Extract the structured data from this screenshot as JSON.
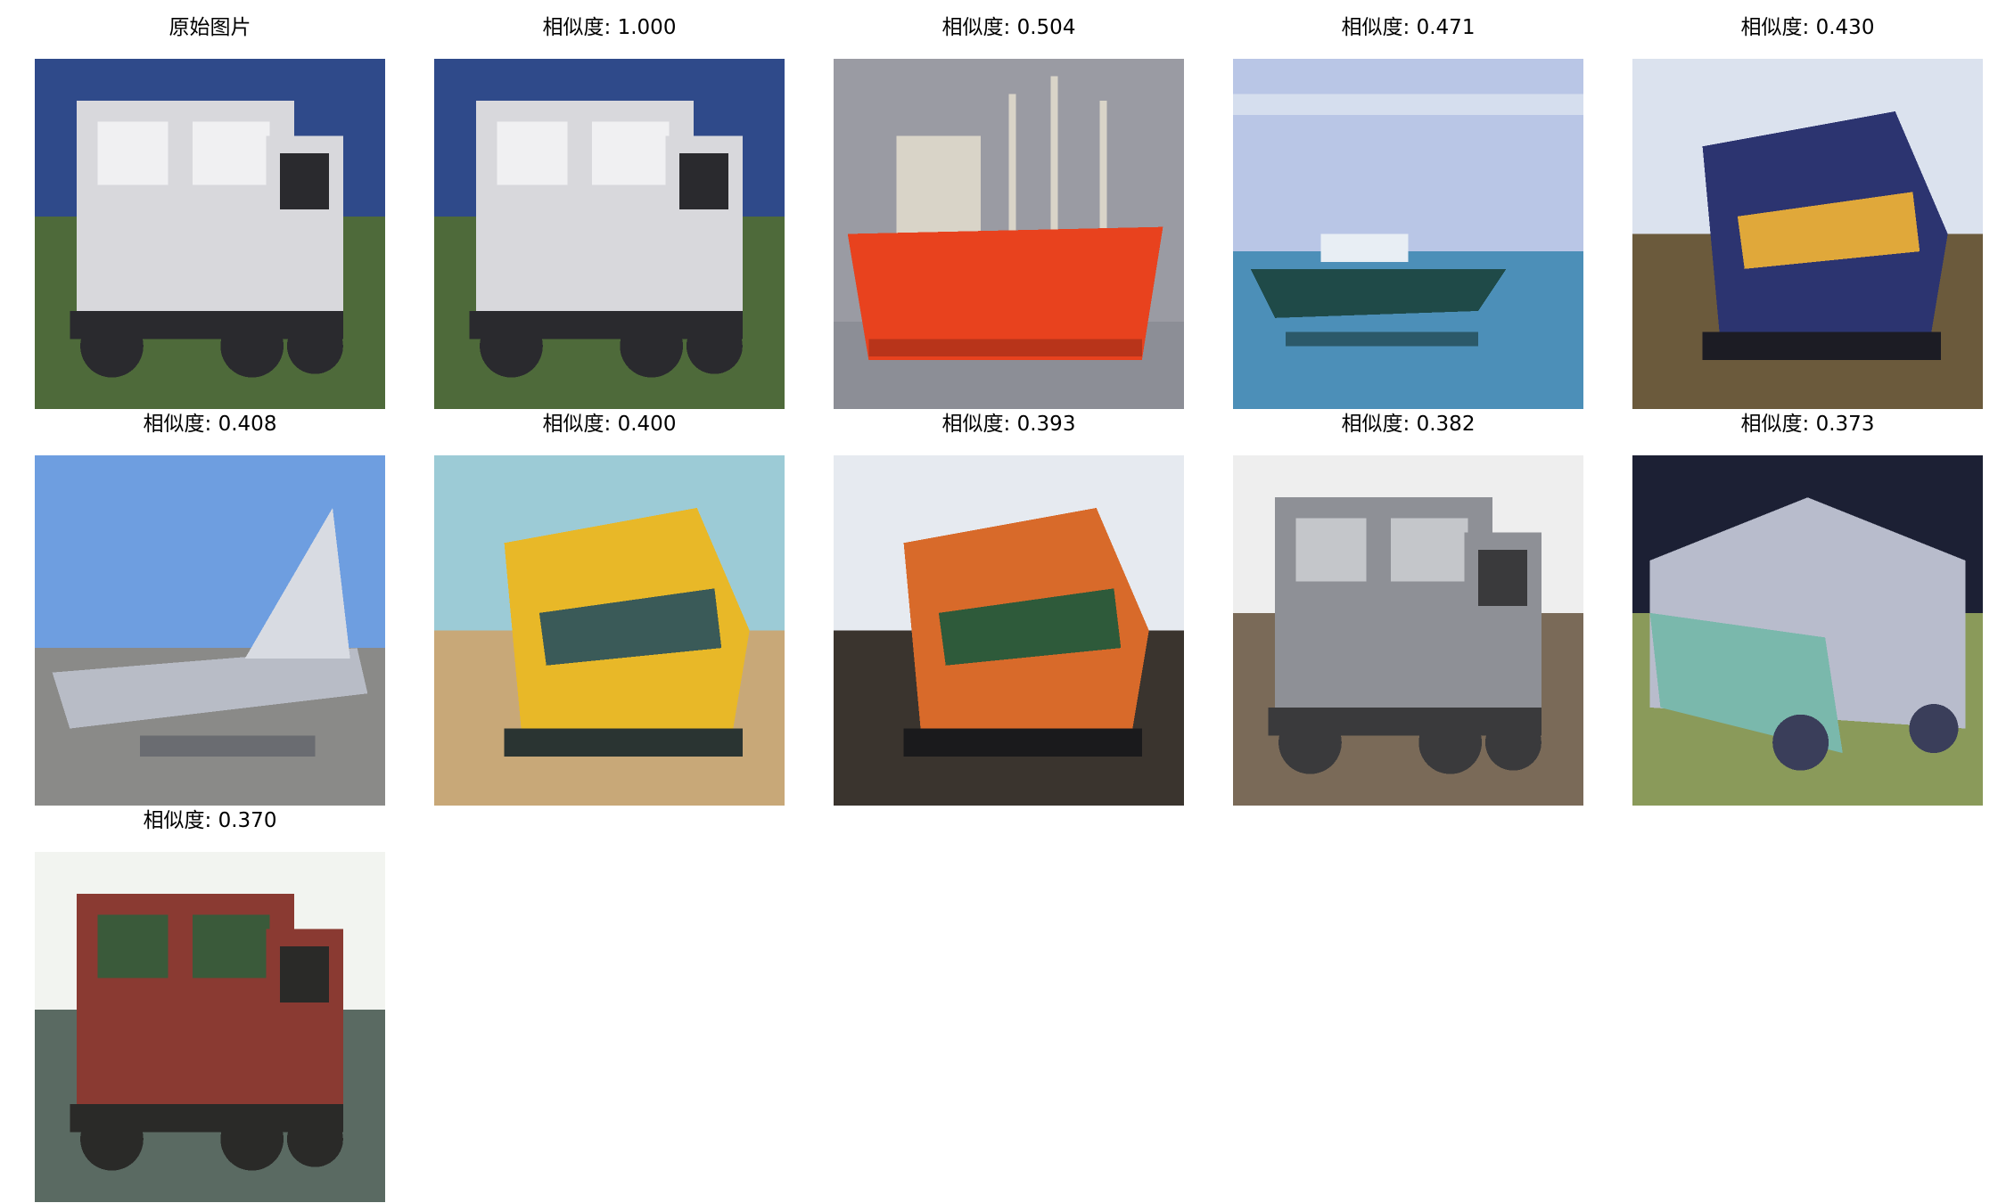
{
  "figure": {
    "panels": [
      {
        "title": "原始图片",
        "subject": "white truck",
        "thumbnail_icon": "truck-image",
        "palette": {
          "sky": "#2f4a8a",
          "ground": "#4e6a3a",
          "main": "#d8d8dc",
          "accent": "#f0f0f2",
          "dark": "#2a2a2e"
        }
      },
      {
        "title": "相似度: 1.000",
        "subject": "white truck",
        "thumbnail_icon": "truck-image",
        "palette": {
          "sky": "#2f4a8a",
          "ground": "#4e6a3a",
          "main": "#d8d8dc",
          "accent": "#f0f0f2",
          "dark": "#2a2a2e"
        }
      },
      {
        "title": "相似度: 0.504",
        "subject": "red ship",
        "thumbnail_icon": "ship-image",
        "palette": {
          "sky": "#9a9ba3",
          "ground": "#8c8e96",
          "main": "#e8421e",
          "accent": "#d9d4c8",
          "dark": "#b8341a"
        }
      },
      {
        "title": "相似度: 0.471",
        "subject": "boat on water",
        "thumbnail_icon": "boat-image",
        "palette": {
          "sky": "#b9c6e6",
          "ground": "#4c8fb8",
          "main": "#1f4a48",
          "accent": "#e8eef4",
          "dark": "#163634"
        }
      },
      {
        "title": "相似度: 0.430",
        "subject": "locomotive",
        "thumbnail_icon": "train-image",
        "palette": {
          "sky": "#dbe2ee",
          "ground": "#6b5a3c",
          "main": "#2c3470",
          "accent": "#e0a83a",
          "dark": "#1c1c24"
        }
      },
      {
        "title": "相似度: 0.408",
        "subject": "jet airplane",
        "thumbnail_icon": "airplane-image",
        "palette": {
          "sky": "#6e9ee0",
          "ground": "#8a8a88",
          "main": "#b8bcc6",
          "accent": "#d8dbe2",
          "dark": "#5c6068"
        }
      },
      {
        "title": "相似度: 0.400",
        "subject": "yellow train",
        "thumbnail_icon": "train-image",
        "palette": {
          "sky": "#9ccbd6",
          "ground": "#c8a878",
          "main": "#e8b828",
          "accent": "#3a5a58",
          "dark": "#2a3432"
        }
      },
      {
        "title": "相似度: 0.393",
        "subject": "orange locomotive",
        "thumbnail_icon": "train-image",
        "palette": {
          "sky": "#e6eaf0",
          "ground": "#3a342e",
          "main": "#d86a2a",
          "accent": "#2e5a3a",
          "dark": "#1a1a1c"
        }
      },
      {
        "title": "相似度: 0.382",
        "subject": "grey truck",
        "thumbnail_icon": "truck-image",
        "palette": {
          "sky": "#eeeeee",
          "ground": "#7a6a58",
          "main": "#8e9096",
          "accent": "#c4c6ca",
          "dark": "#3a3a3c"
        }
      },
      {
        "title": "相似度: 0.373",
        "subject": "teal car",
        "thumbnail_icon": "car-image",
        "palette": {
          "sky": "#1c2034",
          "ground": "#8a9a5a",
          "main": "#7ab8ac",
          "accent": "#b8bccc",
          "dark": "#3a3e5a"
        }
      },
      {
        "title": "相似度: 0.370",
        "subject": "dump truck",
        "thumbnail_icon": "truck-image",
        "palette": {
          "sky": "#f2f4f0",
          "ground": "#5a6a62",
          "main": "#8a3a32",
          "accent": "#3a5a3a",
          "dark": "#2a2a28"
        }
      }
    ]
  }
}
